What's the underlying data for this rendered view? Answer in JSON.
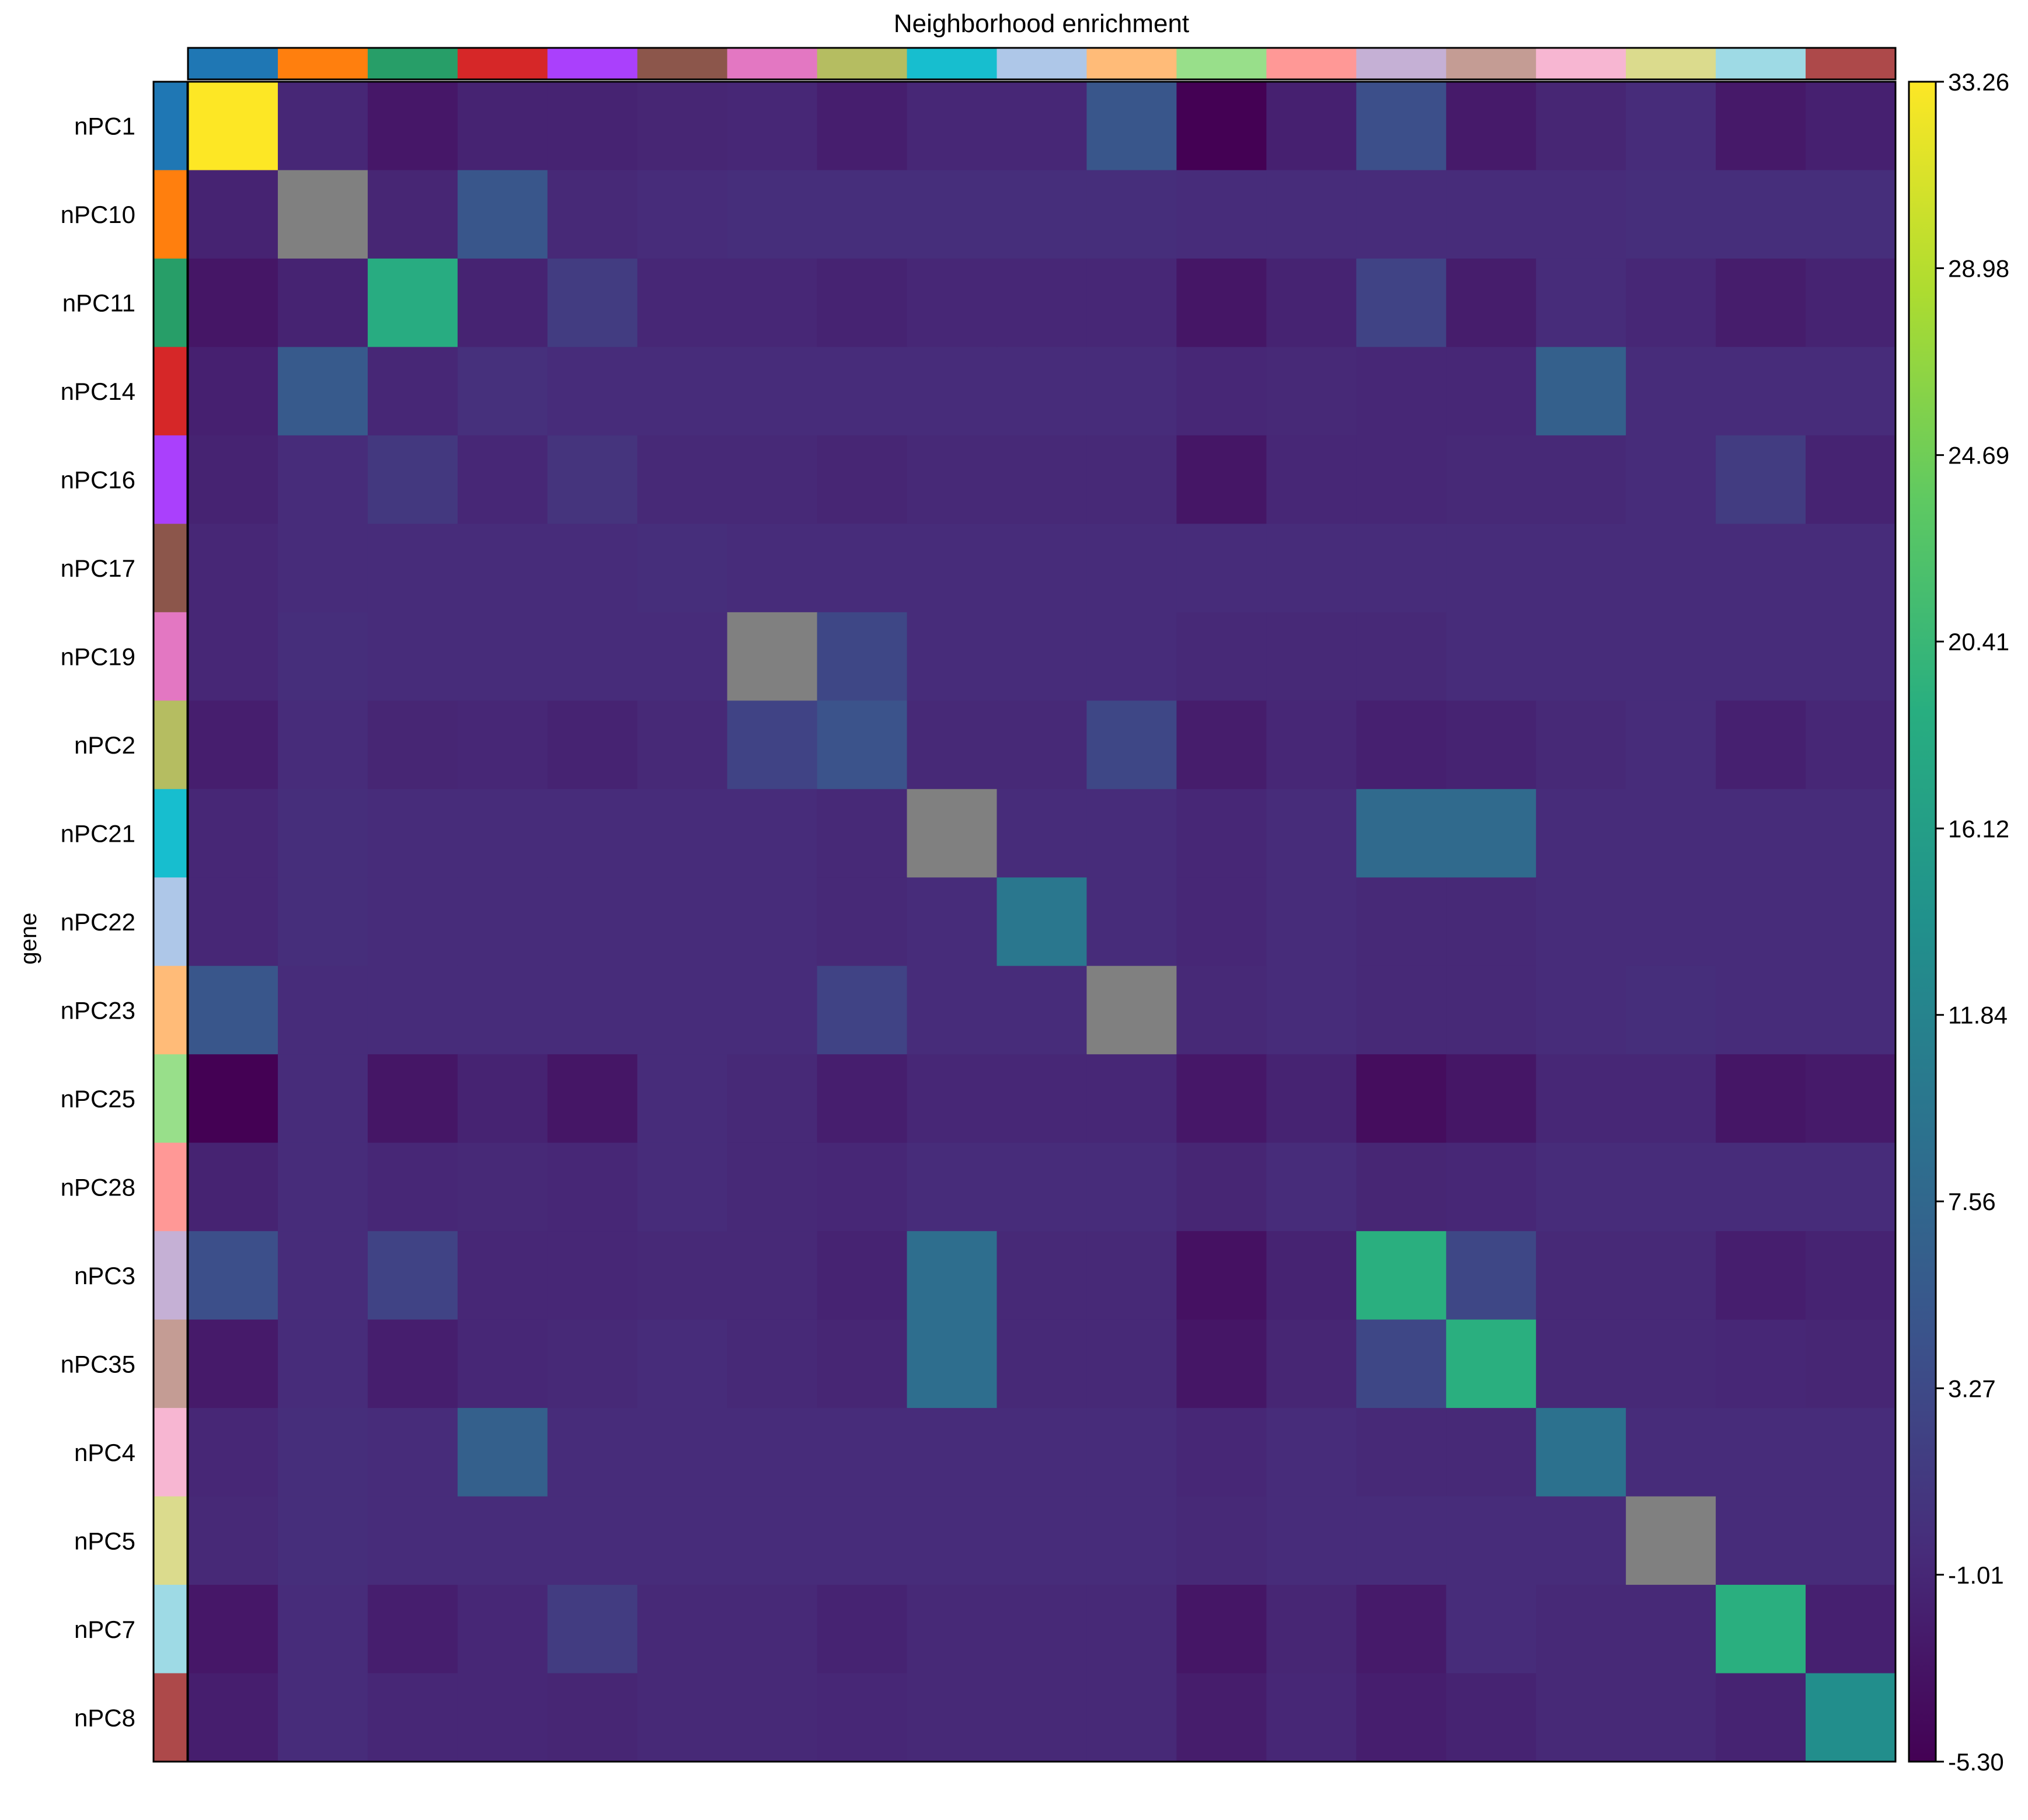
{
  "chart_data": {
    "type": "heatmap",
    "title": "Neighborhood enrichment",
    "ylabel": "gene",
    "xlabel": "",
    "rows": [
      "nPC1",
      "nPC10",
      "nPC11",
      "nPC14",
      "nPC16",
      "nPC17",
      "nPC19",
      "nPC2",
      "nPC21",
      "nPC22",
      "nPC23",
      "nPC25",
      "nPC28",
      "nPC3",
      "nPC35",
      "nPC4",
      "nPC5",
      "nPC7",
      "nPC8"
    ],
    "columns": [
      "nPC1",
      "nPC10",
      "nPC11",
      "nPC14",
      "nPC16",
      "nPC17",
      "nPC19",
      "nPC2",
      "nPC21",
      "nPC22",
      "nPC23",
      "nPC25",
      "nPC28",
      "nPC3",
      "nPC35",
      "nPC4",
      "nPC5",
      "nPC7",
      "nPC8"
    ],
    "category_colors": [
      "#1f77b4",
      "#ff7f0e",
      "#279e68",
      "#d62728",
      "#aa40fc",
      "#8c564b",
      "#e377c2",
      "#b5bd61",
      "#17becf",
      "#aec7e8",
      "#ffbb78",
      "#98df8a",
      "#ff9896",
      "#c5b0d5",
      "#c49c94",
      "#f7b6d2",
      "#dbdb8d",
      "#9edae5",
      "#ad494a"
    ],
    "values": [
      [
        33.26,
        -1.0,
        -2.8,
        -1.5,
        -1.5,
        -1.2,
        -1.0,
        -2.0,
        -1.0,
        -1.0,
        5.0,
        -5.3,
        -1.8,
        4.0,
        -2.5,
        -1.2,
        -0.5,
        -2.6,
        -1.8
      ],
      [
        -1.5,
        null,
        -1.2,
        5.0,
        -0.8,
        -0.5,
        -0.2,
        -0.2,
        -0.2,
        -0.2,
        -0.2,
        -0.5,
        -0.5,
        -0.5,
        -0.5,
        -0.5,
        -0.2,
        -0.2,
        -0.2
      ],
      [
        -3.0,
        -1.5,
        18.5,
        -1.5,
        1.5,
        -1.0,
        -1.0,
        -1.5,
        -1.0,
        -1.0,
        -1.0,
        -3.0,
        -1.5,
        2.5,
        -2.2,
        -0.5,
        -1.0,
        -2.2,
        -1.5
      ],
      [
        -1.8,
        5.5,
        -1.0,
        0.0,
        -0.5,
        -0.5,
        -0.5,
        -0.5,
        -0.5,
        -0.5,
        -0.5,
        -1.0,
        -0.8,
        -1.0,
        -1.0,
        6.5,
        -0.5,
        -0.5,
        -0.5
      ],
      [
        -1.5,
        -0.5,
        1.0,
        -1.0,
        0.5,
        -0.8,
        -0.8,
        -1.2,
        -0.8,
        -0.8,
        -0.8,
        -3.0,
        -1.0,
        -1.0,
        -0.8,
        -0.8,
        -0.5,
        1.5,
        -1.5
      ],
      [
        -1.0,
        -0.5,
        -0.5,
        -0.5,
        -0.5,
        -0.2,
        -0.5,
        -0.5,
        -0.5,
        -0.5,
        -0.5,
        -0.5,
        -0.5,
        -0.5,
        -0.5,
        -0.5,
        -0.5,
        -0.5,
        -0.5
      ],
      [
        -1.0,
        -0.2,
        -0.5,
        -0.5,
        -0.5,
        -0.5,
        null,
        3.0,
        -0.5,
        -0.5,
        -0.5,
        -0.8,
        -0.8,
        -0.8,
        -0.5,
        -0.5,
        -0.5,
        -0.5,
        -0.5
      ],
      [
        -2.0,
        -0.5,
        -1.2,
        -1.0,
        -1.5,
        -0.8,
        2.5,
        4.5,
        -0.8,
        -0.8,
        3.0,
        -2.2,
        -1.0,
        -1.8,
        -1.5,
        -0.8,
        -0.5,
        -1.8,
        -1.0
      ],
      [
        -1.0,
        -0.2,
        -0.5,
        -0.5,
        -0.5,
        -0.5,
        -0.5,
        -0.8,
        null,
        -0.5,
        -0.5,
        -1.0,
        -0.5,
        8.0,
        8.0,
        -0.5,
        -0.5,
        -0.5,
        -0.5
      ],
      [
        -1.0,
        -0.2,
        -0.5,
        -0.5,
        -0.5,
        -0.5,
        -0.5,
        -0.8,
        -0.5,
        10.0,
        -0.5,
        -1.0,
        -0.5,
        -0.8,
        -0.8,
        -0.5,
        -0.5,
        -0.5,
        -0.5
      ],
      [
        5.0,
        -0.5,
        -0.5,
        -0.5,
        -0.5,
        -0.5,
        -0.5,
        2.5,
        -0.5,
        -0.5,
        null,
        -0.8,
        -0.5,
        -0.8,
        -0.8,
        -0.5,
        -0.2,
        -0.5,
        -0.5
      ],
      [
        -5.3,
        -0.5,
        -3.0,
        -1.5,
        -3.0,
        -0.5,
        -0.8,
        -2.0,
        -1.0,
        -1.0,
        -1.0,
        -2.8,
        -1.5,
        -4.0,
        -3.0,
        -1.0,
        -1.0,
        -3.0,
        -2.5
      ],
      [
        -1.5,
        -0.5,
        -1.0,
        -0.8,
        -1.0,
        -0.5,
        -0.8,
        -1.0,
        -0.5,
        -0.5,
        -0.5,
        -1.2,
        -0.5,
        -1.2,
        -1.0,
        -0.5,
        -0.5,
        -0.5,
        -0.5
      ],
      [
        4.0,
        -0.5,
        2.5,
        -1.0,
        -1.0,
        -0.8,
        -0.8,
        -1.5,
        8.5,
        -0.8,
        -0.8,
        -3.5,
        -1.5,
        19.0,
        3.0,
        -0.8,
        -0.8,
        -2.0,
        -1.5
      ],
      [
        -2.5,
        -0.5,
        -2.0,
        -1.0,
        -0.8,
        -0.5,
        -0.8,
        -1.2,
        8.5,
        -0.8,
        -0.8,
        -3.0,
        -1.2,
        3.0,
        19.0,
        -0.8,
        -0.8,
        -1.0,
        -1.2
      ],
      [
        -1.0,
        -0.2,
        -0.5,
        6.5,
        -0.5,
        -0.5,
        -0.5,
        -0.5,
        -0.5,
        -0.5,
        -0.5,
        -1.0,
        -0.5,
        -0.8,
        -0.8,
        9.0,
        -0.5,
        -0.5,
        -0.5
      ],
      [
        -0.8,
        -0.2,
        -0.5,
        -0.5,
        -0.5,
        -0.5,
        -0.5,
        -0.5,
        -0.5,
        -0.5,
        -0.5,
        -0.8,
        -0.5,
        -0.5,
        -0.5,
        -0.5,
        null,
        -0.5,
        -0.5
      ],
      [
        -2.8,
        -0.5,
        -2.0,
        -1.0,
        1.5,
        -0.8,
        -0.8,
        -1.5,
        -0.8,
        -0.8,
        -0.8,
        -3.0,
        -1.2,
        -2.5,
        -0.5,
        -0.8,
        -0.8,
        19.0,
        -1.8
      ],
      [
        -2.0,
        -0.5,
        -1.0,
        -1.0,
        -1.2,
        -0.8,
        -0.8,
        -1.0,
        -0.8,
        -0.8,
        -0.8,
        -2.2,
        -1.0,
        -2.0,
        -1.5,
        -0.8,
        -0.8,
        -1.5,
        13.5
      ]
    ],
    "missing_color": "#808080",
    "colorbar": {
      "min": -5.3,
      "max": 33.26,
      "ticks": [
        "33.26",
        "28.98",
        "24.69",
        "20.41",
        "16.12",
        "11.84",
        "7.56",
        "3.27",
        "-1.01",
        "-5.30"
      ],
      "tick_values": [
        33.26,
        28.98,
        24.69,
        20.41,
        16.12,
        11.84,
        7.56,
        3.27,
        -1.01,
        -5.3
      ],
      "colormap": "viridis"
    }
  }
}
